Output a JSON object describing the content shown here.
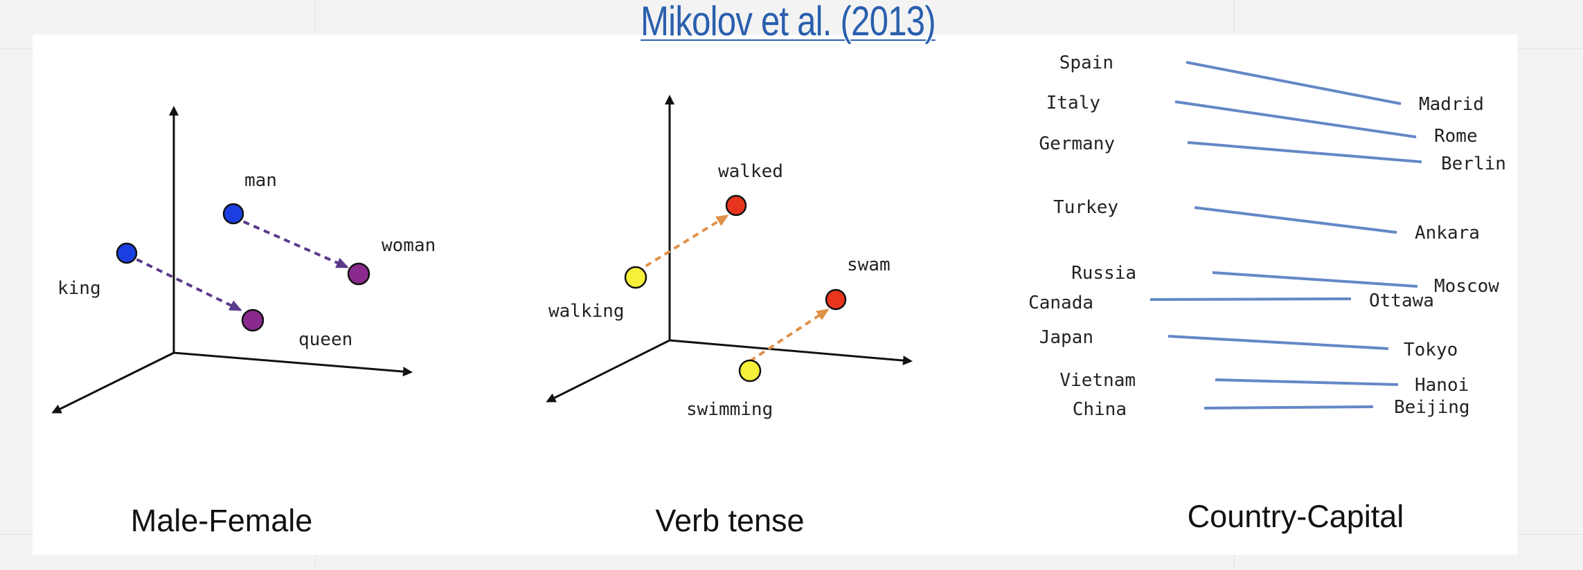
{
  "header": {
    "title": "Mikolov et al. (2013)"
  },
  "panels": {
    "male_female": {
      "caption": "Male-Female",
      "words": {
        "man": "man",
        "woman": "woman",
        "king": "king",
        "queen": "queen"
      }
    },
    "verb_tense": {
      "caption": "Verb tense",
      "words": {
        "walked": "walked",
        "walking": "walking",
        "swam": "swam",
        "swimming": "swimming"
      }
    },
    "country_capital": {
      "caption": "Country-Capital",
      "pairs": [
        {
          "country": "Spain",
          "capital": "Madrid"
        },
        {
          "country": "Italy",
          "capital": "Rome"
        },
        {
          "country": "Germany",
          "capital": "Berlin"
        },
        {
          "country": "Turkey",
          "capital": "Ankara"
        },
        {
          "country": "Russia",
          "capital": "Moscow"
        },
        {
          "country": "Canada",
          "capital": "Ottawa"
        },
        {
          "country": "Japan",
          "capital": "Tokyo"
        },
        {
          "country": "Vietnam",
          "capital": "Hanoi"
        },
        {
          "country": "China",
          "capital": "Beijing"
        }
      ]
    }
  },
  "colors": {
    "title_link": "#2a5fae",
    "blue_point": "#1a3fe0",
    "purple_point": "#8a2a8f",
    "purple_arrow": "#5a3a8a",
    "yellow_point": "#f7f03a",
    "red_point": "#e8361e",
    "orange_arrow": "#e0914a",
    "line_blue": "#6488c6"
  }
}
